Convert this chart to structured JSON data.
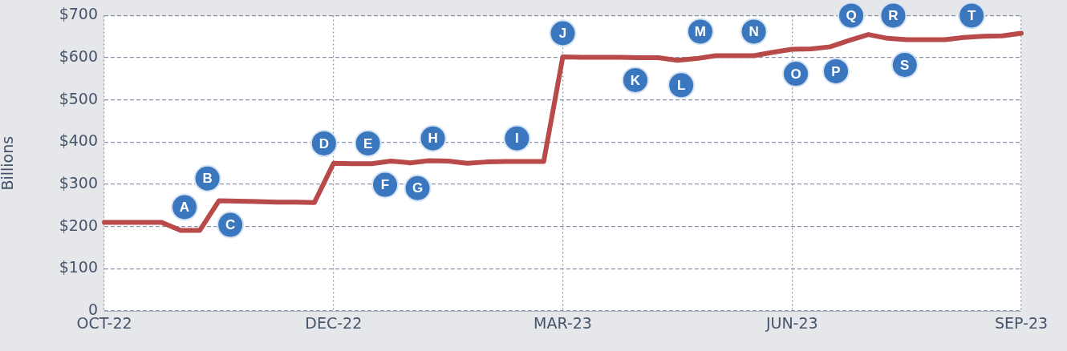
{
  "chart_data": {
    "type": "line",
    "ylabel": "Billions",
    "categories": [
      "OCT-22",
      null,
      null,
      null,
      null,
      null,
      null,
      null,
      null,
      null,
      null,
      null,
      "DEC-22",
      null,
      null,
      null,
      null,
      null,
      null,
      null,
      null,
      null,
      null,
      null,
      "MAR-23",
      null,
      null,
      null,
      null,
      null,
      null,
      null,
      null,
      null,
      null,
      null,
      "JUN-23",
      null,
      null,
      null,
      null,
      null,
      null,
      null,
      null,
      null,
      null,
      null,
      "SEP-23"
    ],
    "series": [
      {
        "color": "#b94a4a",
        "values": [
          210,
          210,
          210,
          210,
          191,
          191,
          261,
          260,
          259,
          258,
          258,
          257,
          350,
          349,
          349,
          355,
          351,
          356,
          355,
          350,
          353,
          354,
          354,
          354,
          602,
          601,
          601,
          601,
          600,
          600,
          594,
          598,
          605,
          605,
          605,
          613,
          620,
          621,
          626,
          641,
          655,
          646,
          643,
          643,
          643,
          648,
          651,
          652,
          658
        ]
      }
    ],
    "ylim": [
      0,
      700
    ],
    "yticks": [
      0,
      {
        "value": 100,
        "label": "$100"
      },
      {
        "value": 200,
        "label": "$200"
      },
      {
        "value": 300,
        "label": "$300"
      },
      {
        "value": 400,
        "label": "$400"
      },
      {
        "value": 500,
        "label": "$500"
      },
      {
        "value": 600,
        "label": "$600"
      },
      {
        "value": 700,
        "label": "$700"
      }
    ],
    "grid": true,
    "annotations": [
      {
        "text": "A",
        "y": 246
      },
      {
        "text": "B",
        "y": 314
      },
      {
        "text": "C",
        "y": 204
      },
      {
        "text": "D",
        "y": 397
      },
      {
        "text": "E",
        "y": 397
      },
      {
        "text": "F",
        "y": 299
      },
      {
        "text": "G",
        "y": 291
      },
      {
        "text": "H",
        "y": 409
      },
      {
        "text": "I",
        "y": 409
      },
      {
        "text": "J",
        "y": 658
      },
      {
        "text": "K",
        "y": 547
      },
      {
        "text": "L",
        "y": 535
      },
      {
        "text": "M",
        "y": 662
      },
      {
        "text": "N",
        "y": 662
      },
      {
        "text": "O",
        "y": 562
      },
      {
        "text": "P",
        "y": 568
      },
      {
        "text": "Q",
        "y": 700
      },
      {
        "text": "R",
        "y": 700
      },
      {
        "text": "S",
        "y": 583
      },
      {
        "text": "T",
        "y": 700
      }
    ]
  }
}
